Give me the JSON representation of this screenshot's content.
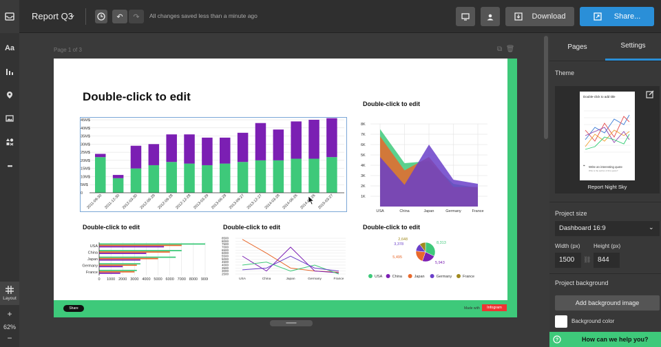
{
  "header": {
    "doc_title": "Report Q3",
    "saved_status": "All changes saved less than a minute ago",
    "download_label": "Download",
    "share_label": "Share..."
  },
  "leftbar": {
    "text_tool": "Aa",
    "more": "•••",
    "layout_label": "Layout",
    "zoom_in": "+",
    "zoom_level": "62%",
    "zoom_out": "−"
  },
  "canvas": {
    "page_label": "Page 1 of 3",
    "footer_share": "Share",
    "made_with": "Made with",
    "brand": "Infogram"
  },
  "charts": {
    "main_title": "Double-click to edit",
    "bar": {
      "title": "",
      "y_ticks": [
        "45M$",
        "40M$",
        "35M$",
        "30M$",
        "25M$",
        "20M$",
        "15M$",
        "10M$",
        "5M$",
        "0"
      ],
      "categories": [
        "2011-09-30",
        "2011-12-30",
        "2012-03-30",
        "2012-06-29",
        "2012-09-28",
        "2012-12-28",
        "2013-03-29",
        "2013-06-28",
        "2013-09-27",
        "2013-12-27",
        "2014-03-28",
        "2014-06-26",
        "2014-09-26",
        "2015-03-27"
      ],
      "green": [
        22,
        9,
        15,
        17,
        19,
        18,
        17,
        18,
        19,
        20,
        20,
        21,
        21,
        22
      ],
      "purple": [
        2,
        2,
        14,
        13,
        17,
        18,
        17,
        16,
        18,
        23,
        19,
        23,
        24,
        24
      ]
    },
    "area": {
      "title": "Double-click to edit",
      "y_ticks": [
        "8K",
        "7K",
        "6K",
        "5K",
        "4K",
        "3K",
        "2K",
        "1K"
      ],
      "categories": [
        "USA",
        "China",
        "Japan",
        "Germany",
        "France"
      ]
    },
    "hbar": {
      "title": "Double-click to edit",
      "categories": [
        "USA",
        "China",
        "Japan",
        "Germany",
        "France"
      ],
      "x_ticks": [
        "0",
        "1000",
        "2000",
        "3000",
        "4000",
        "5000",
        "6000",
        "7000",
        "8000",
        "9000"
      ]
    },
    "line": {
      "title": "Double-click to edit",
      "y_ticks": [
        "8500",
        "8000",
        "7500",
        "7000",
        "6500",
        "6000",
        "5500",
        "5000",
        "4500",
        "4000",
        "3500",
        "3000",
        "2500"
      ],
      "categories": [
        "USA",
        "China",
        "Japan",
        "Germany",
        "France"
      ]
    },
    "pie": {
      "title": "Double-click to edit",
      "labels": [
        "8,313",
        "5,943",
        "5,495",
        "3,378",
        "2,648"
      ],
      "legend": [
        "USA",
        "China",
        "Japan",
        "Germany",
        "France"
      ]
    }
  },
  "rightpanel": {
    "tab_pages": "Pages",
    "tab_settings": "Settings",
    "theme_label": "Theme",
    "theme_thumb_title": "Double-click to add title",
    "theme_thumb_quote": "Write an interesting quote",
    "theme_thumb_author": "Who is the author of this quote?",
    "theme_name": "Report Night Sky",
    "project_size_label": "Project size",
    "project_size_value": "Dashboard 16:9",
    "width_label": "Width (px)",
    "height_label": "Height (px)",
    "width_value": "1500",
    "height_value": "844",
    "project_bg_label": "Project background",
    "add_bg_image": "Add background image",
    "bg_color_label": "Background color",
    "help_label": "How can we help you?"
  },
  "colors": {
    "accent_blue": "#2a8fd8",
    "green": "#3ec97a",
    "purple": "#7b1fb3",
    "orange": "#e8692c",
    "violet": "#6a3fc9",
    "olive": "#a08a1e"
  }
}
